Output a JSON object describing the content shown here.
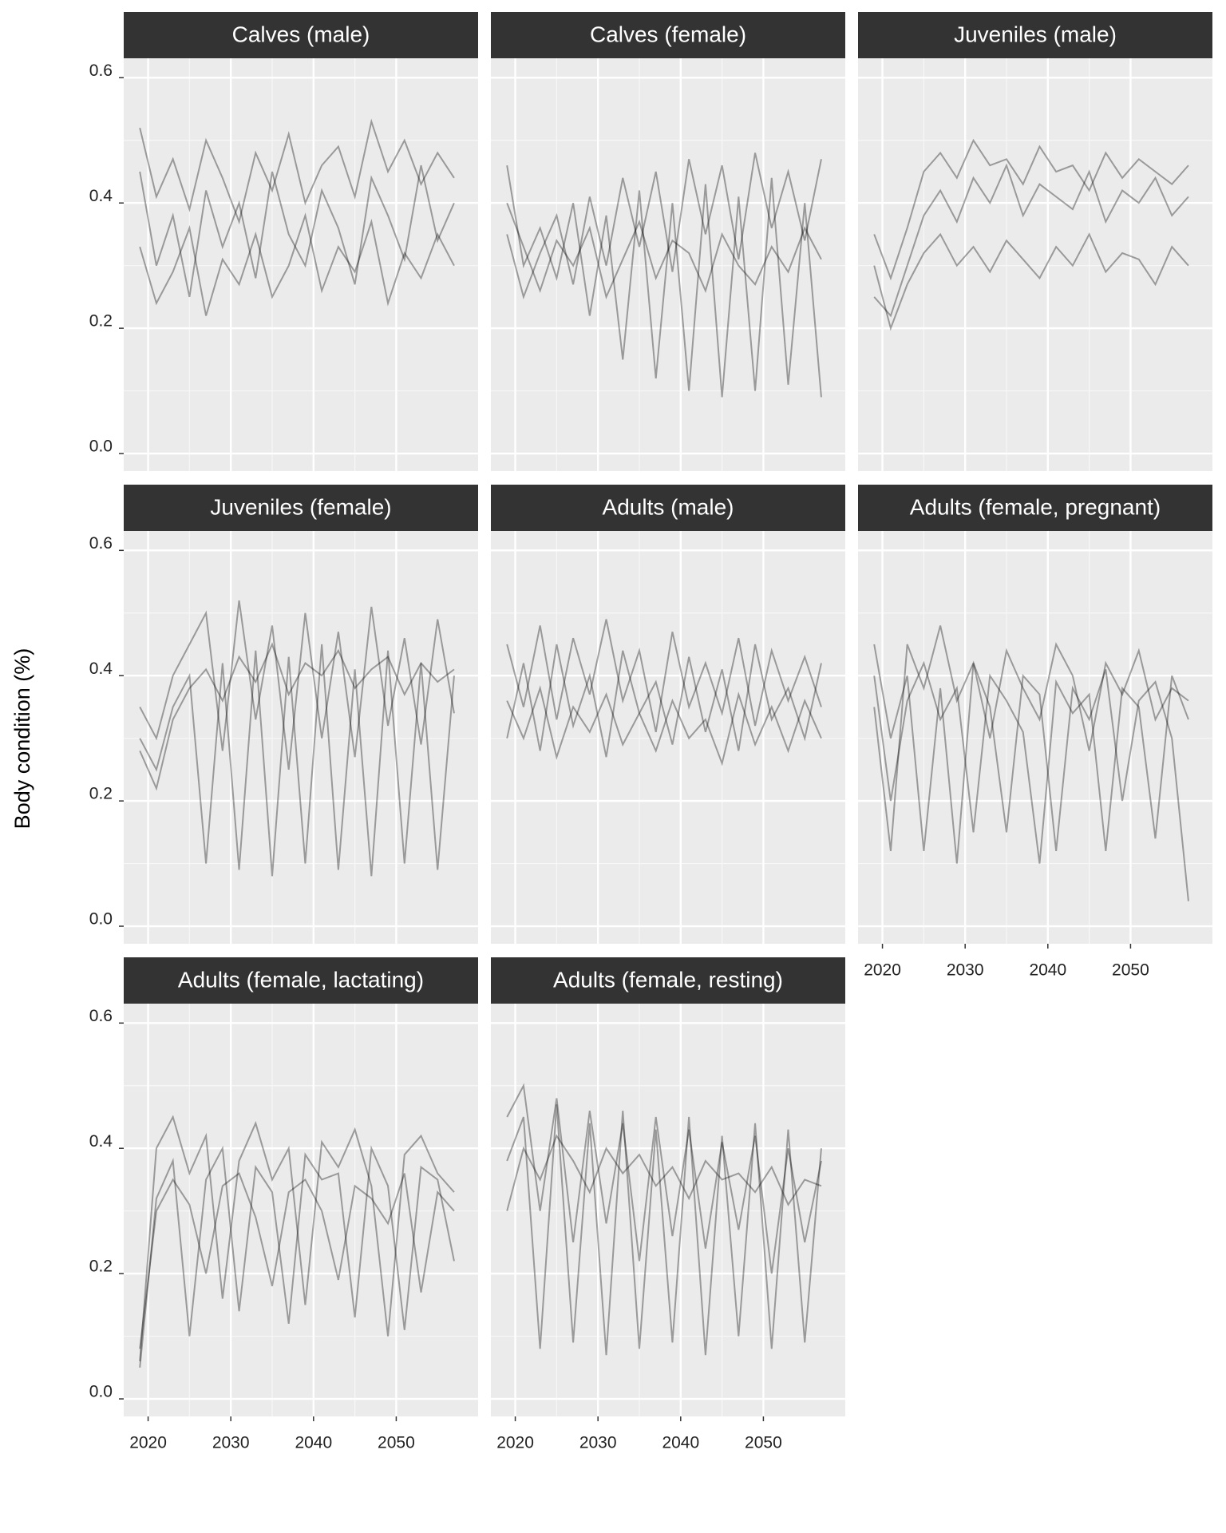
{
  "chart_data": [
    {
      "type": "line",
      "title": "Calves (male)",
      "ylabel": "Body condition (%)",
      "color": "#000000",
      "alpha": 0.35,
      "grid": true,
      "xlim": [
        2017.05,
        2059.9
      ],
      "ylim": [
        -0.028,
        0.631
      ],
      "xticks": [
        2020,
        2030,
        2040,
        2050
      ],
      "yticks": [
        {
          "value": 0,
          "label": "0.0"
        },
        0.2,
        0.4,
        0.6
      ],
      "x": [
        2019,
        2021,
        2023,
        2025,
        2027,
        2029,
        2031,
        2033,
        2035,
        2037,
        2039,
        2041,
        2043,
        2045,
        2047,
        2049,
        2051,
        2053,
        2055,
        2057
      ],
      "series": [
        {
          "values": [
            0.45,
            0.3,
            0.38,
            0.25,
            0.42,
            0.33,
            0.4,
            0.28,
            0.45,
            0.35,
            0.3,
            0.42,
            0.36,
            0.27,
            0.44,
            0.38,
            0.31,
            0.46,
            0.34,
            0.4
          ]
        },
        {
          "values": [
            0.33,
            0.24,
            0.29,
            0.36,
            0.22,
            0.31,
            0.27,
            0.35,
            0.25,
            0.3,
            0.38,
            0.26,
            0.33,
            0.29,
            0.37,
            0.24,
            0.32,
            0.28,
            0.35,
            0.3
          ]
        },
        {
          "values": [
            0.52,
            0.41,
            0.47,
            0.39,
            0.5,
            0.44,
            0.37,
            0.48,
            0.42,
            0.51,
            0.4,
            0.46,
            0.49,
            0.41,
            0.53,
            0.45,
            0.5,
            0.43,
            0.48,
            0.44
          ]
        }
      ]
    },
    {
      "type": "line",
      "title": "Calves (female)",
      "color": "#000000",
      "alpha": 0.35,
      "grid": true,
      "xlim": [
        2017.05,
        2059.9
      ],
      "ylim": [
        -0.028,
        0.631
      ],
      "xticks": [
        2020,
        2030,
        2040,
        2050
      ],
      "yticks": [
        {
          "value": 0,
          "label": "0.0"
        },
        0.2,
        0.4,
        0.6
      ],
      "x": [
        2019,
        2021,
        2023,
        2025,
        2027,
        2029,
        2031,
        2033,
        2035,
        2037,
        2039,
        2041,
        2043,
        2045,
        2047,
        2049,
        2051,
        2053,
        2055,
        2057
      ],
      "series": [
        {
          "values": [
            0.46,
            0.3,
            0.36,
            0.28,
            0.4,
            0.22,
            0.38,
            0.15,
            0.42,
            0.12,
            0.4,
            0.1,
            0.43,
            0.09,
            0.41,
            0.1,
            0.44,
            0.11,
            0.4,
            0.09
          ]
        },
        {
          "values": [
            0.35,
            0.25,
            0.32,
            0.38,
            0.27,
            0.41,
            0.3,
            0.44,
            0.33,
            0.45,
            0.29,
            0.47,
            0.35,
            0.46,
            0.31,
            0.48,
            0.36,
            0.45,
            0.34,
            0.47
          ]
        },
        {
          "values": [
            0.4,
            0.33,
            0.26,
            0.34,
            0.3,
            0.36,
            0.25,
            0.31,
            0.37,
            0.28,
            0.34,
            0.32,
            0.26,
            0.35,
            0.3,
            0.27,
            0.33,
            0.29,
            0.36,
            0.31
          ]
        }
      ]
    },
    {
      "type": "line",
      "title": "Juveniles (male)",
      "color": "#000000",
      "alpha": 0.35,
      "grid": true,
      "xlim": [
        2017.05,
        2059.9
      ],
      "ylim": [
        -0.028,
        0.631
      ],
      "xticks": [
        2020,
        2030,
        2040,
        2050
      ],
      "yticks": [
        {
          "value": 0,
          "label": "0.0"
        },
        0.2,
        0.4,
        0.6
      ],
      "x": [
        2019,
        2021,
        2023,
        2025,
        2027,
        2029,
        2031,
        2033,
        2035,
        2037,
        2039,
        2041,
        2043,
        2045,
        2047,
        2049,
        2051,
        2053,
        2055,
        2057
      ],
      "series": [
        {
          "values": [
            0.25,
            0.22,
            0.3,
            0.38,
            0.42,
            0.37,
            0.44,
            0.4,
            0.46,
            0.38,
            0.43,
            0.41,
            0.39,
            0.45,
            0.37,
            0.42,
            0.4,
            0.44,
            0.38,
            0.41
          ]
        },
        {
          "values": [
            0.3,
            0.2,
            0.27,
            0.32,
            0.35,
            0.3,
            0.33,
            0.29,
            0.34,
            0.31,
            0.28,
            0.33,
            0.3,
            0.35,
            0.29,
            0.32,
            0.31,
            0.27,
            0.33,
            0.3
          ]
        },
        {
          "values": [
            0.35,
            0.28,
            0.36,
            0.45,
            0.48,
            0.44,
            0.5,
            0.46,
            0.47,
            0.43,
            0.49,
            0.45,
            0.46,
            0.42,
            0.48,
            0.44,
            0.47,
            0.45,
            0.43,
            0.46
          ]
        }
      ]
    },
    {
      "type": "line",
      "title": "Juveniles (female)",
      "color": "#000000",
      "alpha": 0.35,
      "grid": true,
      "xlim": [
        2017.05,
        2059.9
      ],
      "ylim": [
        -0.028,
        0.631
      ],
      "xticks": [
        2020,
        2030,
        2040,
        2050
      ],
      "yticks": [
        {
          "value": 0,
          "label": "0.0"
        },
        0.2,
        0.4,
        0.6
      ],
      "x": [
        2019,
        2021,
        2023,
        2025,
        2027,
        2029,
        2031,
        2033,
        2035,
        2037,
        2039,
        2041,
        2043,
        2045,
        2047,
        2049,
        2051,
        2053,
        2055,
        2057
      ],
      "series": [
        {
          "values": [
            0.3,
            0.25,
            0.35,
            0.4,
            0.1,
            0.42,
            0.09,
            0.44,
            0.08,
            0.43,
            0.1,
            0.45,
            0.09,
            0.41,
            0.08,
            0.44,
            0.1,
            0.42,
            0.09,
            0.4
          ]
        },
        {
          "values": [
            0.28,
            0.22,
            0.33,
            0.38,
            0.41,
            0.36,
            0.43,
            0.39,
            0.45,
            0.37,
            0.42,
            0.4,
            0.44,
            0.38,
            0.41,
            0.43,
            0.37,
            0.42,
            0.39,
            0.41
          ]
        },
        {
          "values": [
            0.35,
            0.3,
            0.4,
            0.45,
            0.5,
            0.28,
            0.52,
            0.33,
            0.48,
            0.25,
            0.5,
            0.3,
            0.47,
            0.27,
            0.51,
            0.32,
            0.46,
            0.29,
            0.49,
            0.34
          ]
        }
      ]
    },
    {
      "type": "line",
      "title": "Adults (male)",
      "color": "#000000",
      "alpha": 0.35,
      "grid": true,
      "xlim": [
        2017.05,
        2059.9
      ],
      "ylim": [
        -0.028,
        0.631
      ],
      "xticks": [
        2020,
        2030,
        2040,
        2050
      ],
      "yticks": [
        {
          "value": 0,
          "label": "0.0"
        },
        0.2,
        0.4,
        0.6
      ],
      "x": [
        2019,
        2021,
        2023,
        2025,
        2027,
        2029,
        2031,
        2033,
        2035,
        2037,
        2039,
        2041,
        2043,
        2045,
        2047,
        2049,
        2051,
        2053,
        2055,
        2057
      ],
      "series": [
        {
          "values": [
            0.3,
            0.42,
            0.28,
            0.45,
            0.32,
            0.4,
            0.27,
            0.44,
            0.34,
            0.39,
            0.29,
            0.43,
            0.31,
            0.41,
            0.28,
            0.45,
            0.33,
            0.38,
            0.3,
            0.42
          ]
        },
        {
          "values": [
            0.45,
            0.35,
            0.48,
            0.33,
            0.46,
            0.37,
            0.49,
            0.36,
            0.44,
            0.31,
            0.47,
            0.35,
            0.42,
            0.34,
            0.46,
            0.32,
            0.44,
            0.36,
            0.43,
            0.35
          ]
        },
        {
          "values": [
            0.36,
            0.3,
            0.38,
            0.27,
            0.35,
            0.31,
            0.37,
            0.29,
            0.34,
            0.28,
            0.36,
            0.3,
            0.33,
            0.26,
            0.37,
            0.29,
            0.35,
            0.28,
            0.36,
            0.3
          ]
        }
      ]
    },
    {
      "type": "line",
      "title": "Adults (female, pregnant)",
      "color": "#000000",
      "alpha": 0.35,
      "grid": true,
      "xlim": [
        2017.05,
        2059.9
      ],
      "ylim": [
        -0.028,
        0.631
      ],
      "xticks": [
        2020,
        2030,
        2040,
        2050
      ],
      "yticks": [
        {
          "value": 0,
          "label": "0.0"
        },
        0.2,
        0.4,
        0.6
      ],
      "x": [
        2019,
        2021,
        2023,
        2025,
        2027,
        2029,
        2031,
        2033,
        2035,
        2037,
        2039,
        2041,
        2043,
        2045,
        2047,
        2049,
        2051,
        2053,
        2055,
        2057
      ],
      "series": [
        {
          "values": [
            0.45,
            0.3,
            0.4,
            0.12,
            0.38,
            0.1,
            0.42,
            0.35,
            0.15,
            0.4,
            0.37,
            0.12,
            0.38,
            0.33,
            0.41,
            0.2,
            0.36,
            0.39,
            0.3,
            0.04
          ]
        },
        {
          "values": [
            0.4,
            0.2,
            0.36,
            0.42,
            0.33,
            0.38,
            0.15,
            0.4,
            0.36,
            0.31,
            0.1,
            0.39,
            0.34,
            0.37,
            0.12,
            0.38,
            0.35,
            0.14,
            0.4,
            0.33
          ]
        },
        {
          "values": [
            0.35,
            0.12,
            0.45,
            0.38,
            0.48,
            0.36,
            0.42,
            0.3,
            0.44,
            0.38,
            0.33,
            0.45,
            0.4,
            0.28,
            0.42,
            0.37,
            0.44,
            0.33,
            0.38,
            0.36
          ]
        }
      ]
    },
    {
      "type": "line",
      "title": "Adults (female, lactating)",
      "color": "#000000",
      "alpha": 0.35,
      "grid": true,
      "xlim": [
        2017.05,
        2059.9
      ],
      "ylim": [
        -0.028,
        0.631
      ],
      "xticks": [
        2020,
        2030,
        2040,
        2050
      ],
      "yticks": [
        {
          "value": 0,
          "label": "0.0"
        },
        0.2,
        0.4,
        0.6
      ],
      "x": [
        2019,
        2021,
        2023,
        2025,
        2027,
        2029,
        2031,
        2033,
        2035,
        2037,
        2039,
        2041,
        2043,
        2045,
        2047,
        2049,
        2051,
        2053,
        2055,
        2057
      ],
      "series": [
        {
          "values": [
            0.05,
            0.32,
            0.38,
            0.1,
            0.35,
            0.4,
            0.14,
            0.37,
            0.33,
            0.12,
            0.39,
            0.35,
            0.36,
            0.13,
            0.4,
            0.34,
            0.11,
            0.37,
            0.35,
            0.22
          ]
        },
        {
          "values": [
            0.06,
            0.4,
            0.45,
            0.36,
            0.42,
            0.16,
            0.38,
            0.44,
            0.35,
            0.4,
            0.15,
            0.41,
            0.37,
            0.43,
            0.34,
            0.1,
            0.39,
            0.42,
            0.36,
            0.33
          ]
        },
        {
          "values": [
            0.08,
            0.3,
            0.35,
            0.31,
            0.2,
            0.34,
            0.36,
            0.29,
            0.18,
            0.33,
            0.35,
            0.3,
            0.19,
            0.34,
            0.32,
            0.28,
            0.36,
            0.17,
            0.33,
            0.3
          ]
        }
      ]
    },
    {
      "type": "line",
      "title": "Adults (female, resting)",
      "color": "#000000",
      "alpha": 0.35,
      "grid": true,
      "xlim": [
        2017.05,
        2059.9
      ],
      "ylim": [
        -0.028,
        0.631
      ],
      "xticks": [
        2020,
        2030,
        2040,
        2050
      ],
      "yticks": [
        {
          "value": 0,
          "label": "0.0"
        },
        0.2,
        0.4,
        0.6
      ],
      "x": [
        2019,
        2021,
        2023,
        2025,
        2027,
        2029,
        2031,
        2033,
        2035,
        2037,
        2039,
        2041,
        2043,
        2045,
        2047,
        2049,
        2051,
        2053,
        2055,
        2057
      ],
      "series": [
        {
          "values": [
            0.38,
            0.45,
            0.08,
            0.47,
            0.09,
            0.44,
            0.07,
            0.46,
            0.08,
            0.43,
            0.09,
            0.45,
            0.07,
            0.42,
            0.1,
            0.44,
            0.08,
            0.43,
            0.09,
            0.4
          ]
        },
        {
          "values": [
            0.3,
            0.4,
            0.35,
            0.42,
            0.38,
            0.33,
            0.4,
            0.36,
            0.39,
            0.34,
            0.37,
            0.32,
            0.38,
            0.35,
            0.36,
            0.33,
            0.37,
            0.31,
            0.35,
            0.34
          ]
        },
        {
          "values": [
            0.45,
            0.5,
            0.3,
            0.48,
            0.25,
            0.46,
            0.28,
            0.44,
            0.22,
            0.45,
            0.26,
            0.43,
            0.24,
            0.41,
            0.27,
            0.42,
            0.2,
            0.4,
            0.25,
            0.38
          ]
        }
      ]
    }
  ]
}
